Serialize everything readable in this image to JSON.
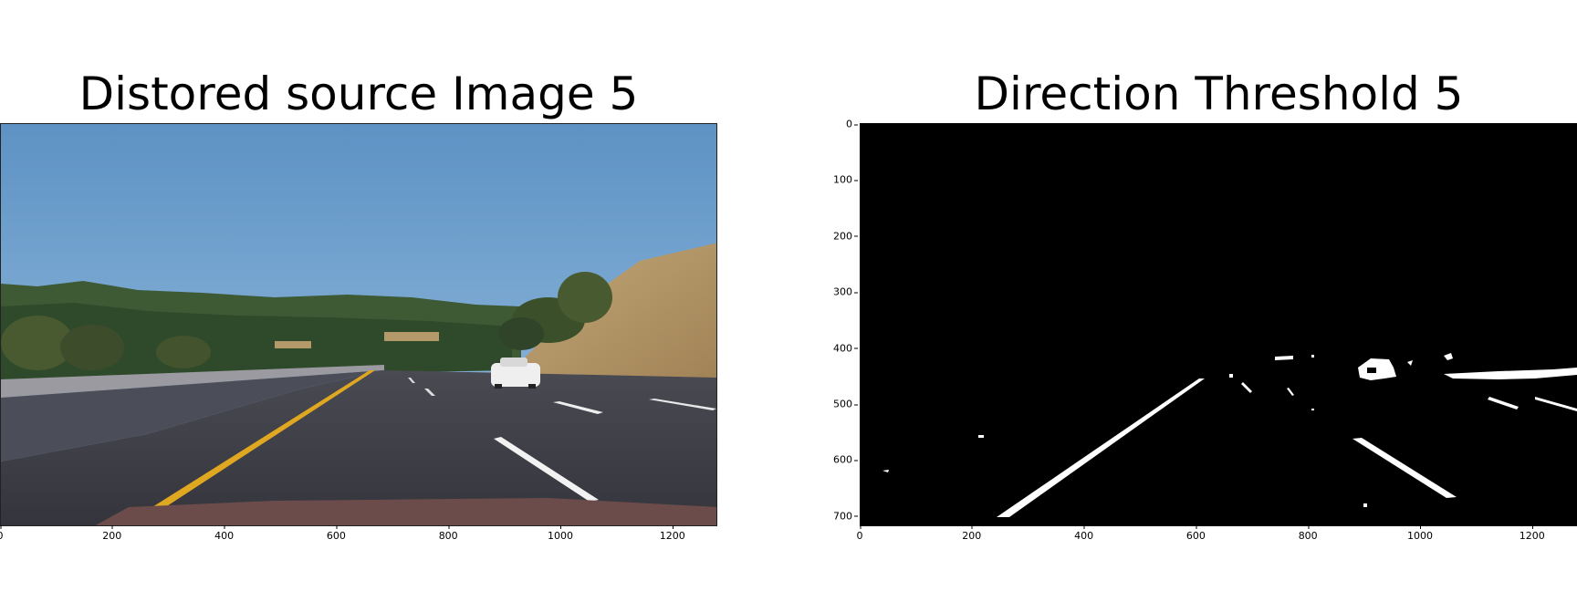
{
  "figure": {
    "left": {
      "title": "Distored source Image 5",
      "x_ticks": [
        "0",
        "200",
        "400",
        "600",
        "800",
        "1000",
        "1200"
      ]
    },
    "right": {
      "title": "Direction Threshold 5",
      "x_ticks": [
        "0",
        "200",
        "400",
        "600",
        "800",
        "1000",
        "1200"
      ],
      "y_ticks": [
        "0",
        "100",
        "200",
        "300",
        "400",
        "500",
        "600",
        "700"
      ]
    }
  }
}
